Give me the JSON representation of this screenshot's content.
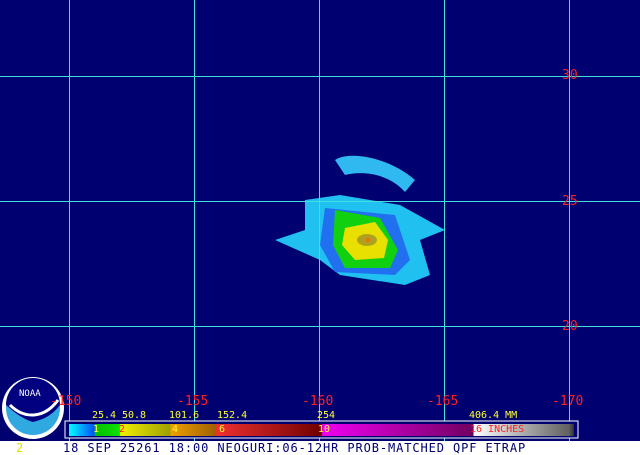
{
  "map": {
    "lat_labels": [
      "30",
      "25",
      "20"
    ],
    "lon_labels": [
      "-150",
      "-155",
      "-160",
      "-165",
      "-170"
    ],
    "colors": {
      "background": "#000070",
      "grid": "#40e0e0",
      "label": "#ff2020"
    }
  },
  "colorbar": {
    "mm_labels": [
      "25.4",
      "50.8",
      "101.6",
      "152.4",
      "254",
      "406.4 MM"
    ],
    "inch_labels": [
      "1",
      "2",
      "4",
      "6",
      "10",
      "16 INCHES"
    ]
  },
  "logo": {
    "text": "NOAA"
  },
  "footer": {
    "frame_number": "2",
    "caption": "18 SEP 25261 18:00 NEOGURI:06-12HR PROB-MATCHED QPF ETRAP"
  }
}
